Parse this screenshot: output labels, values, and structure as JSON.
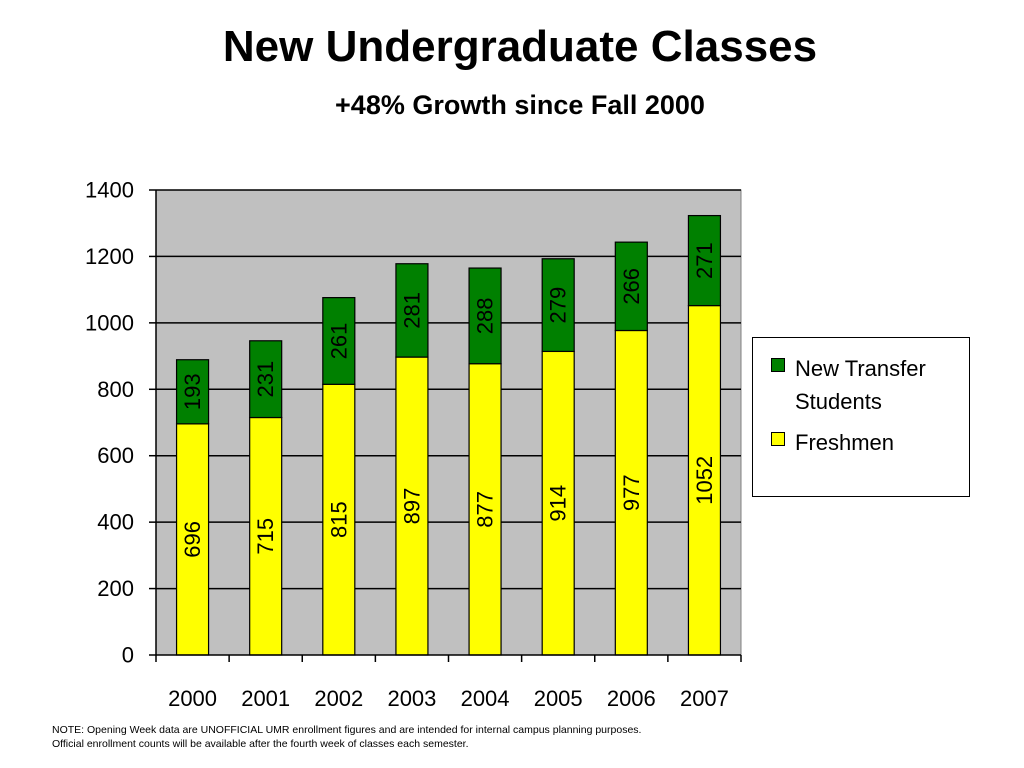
{
  "title": "New Undergraduate Classes",
  "subtitle": "+48% Growth since Fall 2000",
  "note_line1": "NOTE: Opening Week data are UNOFFICIAL UMR enrollment figures and are intended for internal campus planning purposes.",
  "note_line2": "Official enrollment counts will be available after the fourth week of classes each semester.",
  "chart_data": {
    "type": "bar",
    "stacked": true,
    "categories": [
      "2000",
      "2001",
      "2002",
      "2003",
      "2004",
      "2005",
      "2006",
      "2007"
    ],
    "series": [
      {
        "name": "Freshmen",
        "values": [
          696,
          715,
          815,
          897,
          877,
          914,
          977,
          1052
        ],
        "color": "#ffff00"
      },
      {
        "name": "New Transfer Students",
        "values": [
          193,
          231,
          261,
          281,
          288,
          279,
          266,
          271
        ],
        "color": "#008000"
      }
    ],
    "ylim": [
      0,
      1400
    ],
    "yticks": [
      "0",
      "200",
      "400",
      "600",
      "800",
      "1000",
      "1200",
      "1400"
    ],
    "grid": true,
    "plot_background": "#c0c0c0",
    "data_labels": "vertical, inside bars",
    "legend_position": "right",
    "legend_order": [
      "New Transfer Students",
      "Freshmen"
    ]
  }
}
